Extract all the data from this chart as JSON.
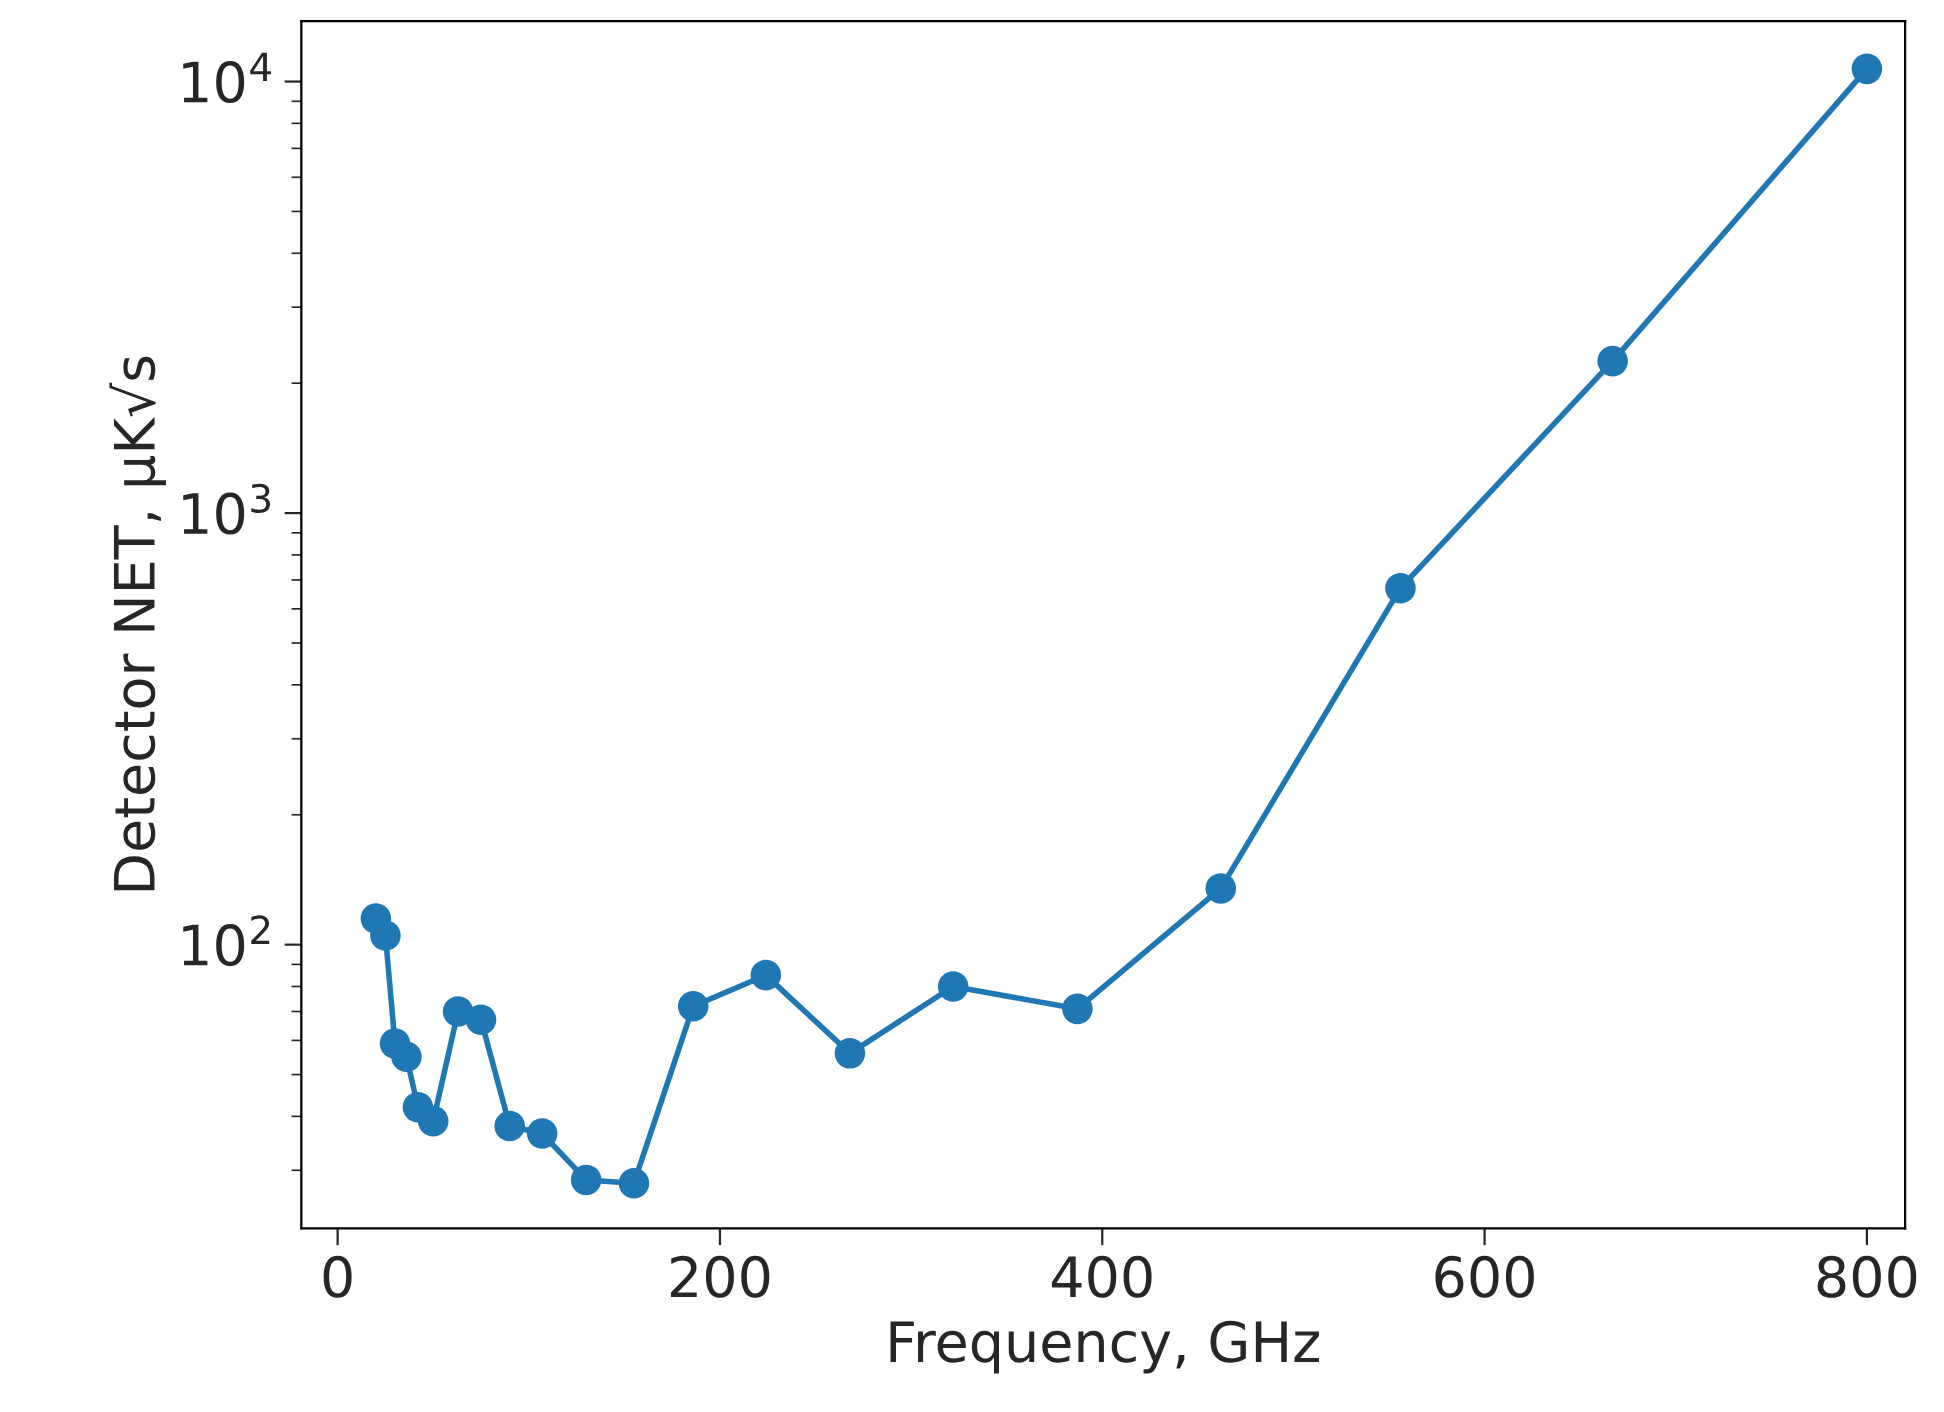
{
  "chart_data": {
    "type": "line",
    "xlabel": "Frequency, GHz",
    "ylabel": "Detector NET, μK√s",
    "x": [
      20,
      25,
      30,
      36,
      42,
      50,
      63,
      75,
      90,
      107,
      130,
      155,
      186,
      224,
      268,
      322,
      387,
      462,
      556,
      667,
      800
    ],
    "series": [
      {
        "color": "#1f77b4",
        "values": [
          115,
          105,
          59,
          55,
          42,
          39,
          70,
          67,
          38,
          36.5,
          28.5,
          28,
          72,
          85,
          56,
          80,
          71,
          135,
          670,
          2250,
          10700
        ]
      }
    ],
    "log": "y",
    "marker": "circle",
    "line_style": "solid",
    "grid": false,
    "legend": false,
    "xlim": [
      -19,
      820
    ],
    "xticks": [
      0,
      200,
      400,
      600,
      800
    ],
    "ylim": [
      22,
      13800
    ],
    "yticks": [
      {
        "value": 100,
        "label": "10$^{2}$"
      },
      {
        "value": 1000,
        "label": "10$^{3}$"
      },
      {
        "value": 10000,
        "label": "10$^{4}$"
      }
    ]
  }
}
